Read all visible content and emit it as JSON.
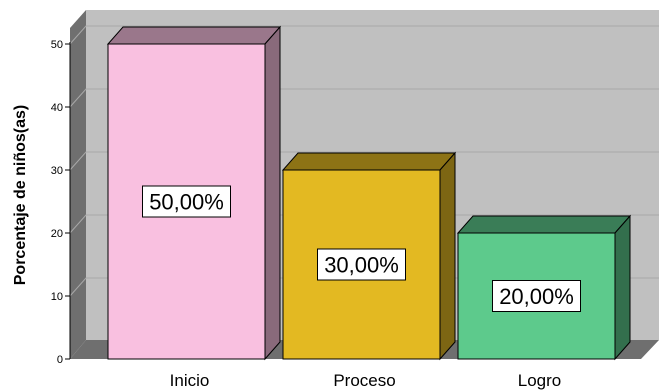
{
  "chart_data": {
    "type": "bar",
    "categories": [
      "Inicio",
      "Proceso",
      "Logro"
    ],
    "values": [
      50,
      30,
      20
    ],
    "data_labels": [
      "50,00%",
      "30,00%",
      "20,00%"
    ],
    "colors": [
      "#f9c0e0",
      "#e3b922",
      "#5dca8c"
    ],
    "xlabel": "",
    "ylabel": "Porcentaje de niños(as)",
    "ylim": [
      0,
      50
    ],
    "yticks": [
      0,
      10,
      20,
      30,
      40,
      50
    ],
    "ytick_labels": [
      "0",
      "10",
      "20",
      "30",
      "40",
      "50"
    ],
    "grid": true,
    "style": "3d",
    "background": "#c0c0c0",
    "legend": "none"
  }
}
